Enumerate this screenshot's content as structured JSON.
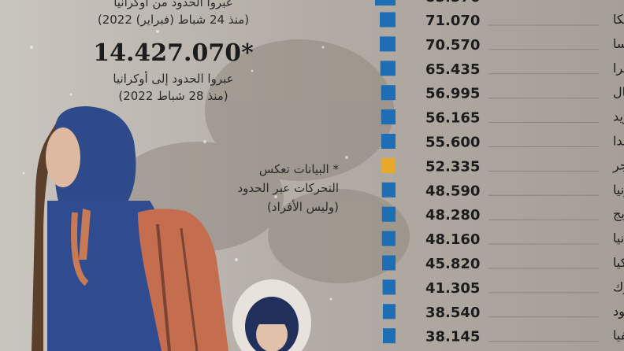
{
  "top_stat": {
    "caption_line1": "عبروا الحدود من أوكرانيا",
    "caption_line2": "(منذ 24 شباط (فبراير) 2022)"
  },
  "entered_stat": {
    "value": "14.427.070",
    "marker": "*",
    "caption_line1": "عبروا الحدود إلى أوكرانيا",
    "caption_line2": "(منذ 28 شباط 2022)"
  },
  "note": {
    "line1": "* البيانات تعكس",
    "line2": "التحركات عبر الحدود",
    "line3": "(وليس الأفراد)"
  },
  "colors": {
    "bar": "#1f6db5",
    "highlight": "#e8a92b",
    "text": "#1c1c1c"
  },
  "chart_data": {
    "type": "bar",
    "orientation": "horizontal",
    "categories": [
      "بلجيكا",
      "فرنسا",
      "سويسرا",
      "البرتغال",
      "السويد",
      "فنلندا",
      "المجر",
      "إستونيا",
      "النرويج",
      "ليتوانيا",
      "تركيا",
      "الدنمارك",
      "الجبل الأسود",
      "لاتفيا"
    ],
    "values": [
      71070,
      70570,
      65435,
      56995,
      56165,
      55600,
      52335,
      48590,
      48280,
      48160,
      45820,
      41305,
      38540,
      38145
    ],
    "value_labels": [
      "71.070",
      "70.570",
      "65.435",
      "56.995",
      "56.165",
      "55.600",
      "52.335",
      "48.590",
      "48.280",
      "48.160",
      "45.820",
      "41.305",
      "38.540",
      "38.145"
    ],
    "highlight_category": "المجر",
    "partial_top_value_label": "85.576"
  }
}
